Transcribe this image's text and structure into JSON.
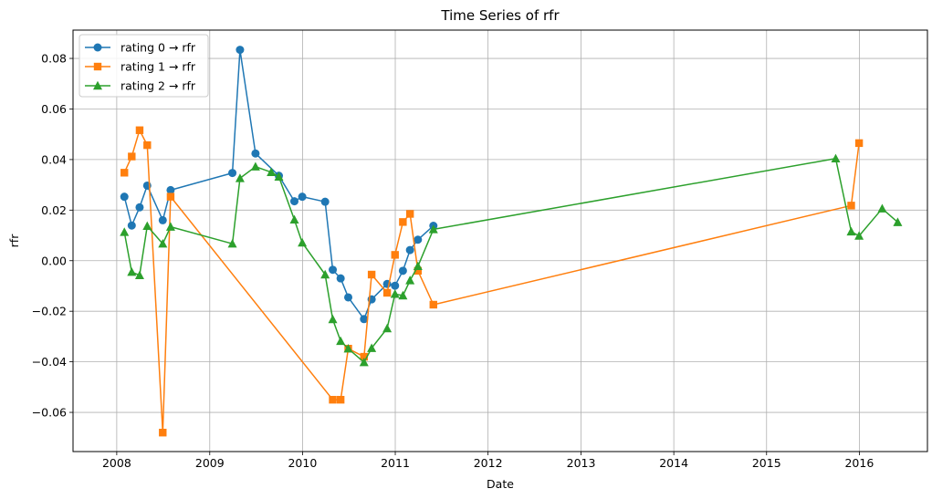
{
  "chart_data": {
    "type": "line",
    "title": "Time Series of rfr",
    "xlabel": "Date",
    "ylabel": "rfr",
    "xlim": [
      "2007-07-13",
      "2016-09-25"
    ],
    "ylim": [
      -0.0755,
      0.0912
    ],
    "grid": true,
    "legend_position": "top-left",
    "x_ticks": [
      "2008",
      "2009",
      "2010",
      "2011",
      "2012",
      "2013",
      "2014",
      "2015",
      "2016"
    ],
    "y_ticks": [
      "−0.06",
      "−0.04",
      "−0.02",
      "0.00",
      "0.02",
      "0.04",
      "0.06",
      "0.08"
    ],
    "y_tick_values": [
      -0.06,
      -0.04,
      -0.02,
      0.0,
      0.02,
      0.04,
      0.06,
      0.08
    ],
    "series": [
      {
        "name": "rating 0 → rfr",
        "color": "#1f77b4",
        "marker": "circle",
        "points": [
          [
            "2008-01-31",
            0.0253
          ],
          [
            "2008-02-29",
            0.0139
          ],
          [
            "2008-03-31",
            0.0211
          ],
          [
            "2008-04-30",
            0.0297
          ],
          [
            "2008-06-30",
            0.016
          ],
          [
            "2008-07-31",
            0.0279
          ],
          [
            "2009-03-31",
            0.0347
          ],
          [
            "2009-04-30",
            0.0834
          ],
          [
            "2009-06-30",
            0.0424
          ],
          [
            "2009-09-30",
            0.0336
          ],
          [
            "2009-11-30",
            0.0235
          ],
          [
            "2009-12-31",
            0.0253
          ],
          [
            "2010-03-31",
            0.0233
          ],
          [
            "2010-04-30",
            -0.0036
          ],
          [
            "2010-05-31",
            -0.007
          ],
          [
            "2010-06-30",
            -0.0145
          ],
          [
            "2010-08-31",
            -0.0231
          ],
          [
            "2010-09-30",
            -0.0153
          ],
          [
            "2010-11-30",
            -0.0092
          ],
          [
            "2010-12-31",
            -0.0099
          ],
          [
            "2011-01-31",
            -0.004
          ],
          [
            "2011-02-28",
            0.0042
          ],
          [
            "2011-03-31",
            0.0083
          ],
          [
            "2011-05-31",
            0.0138
          ]
        ]
      },
      {
        "name": "rating 1 → rfr",
        "color": "#ff7f0e",
        "marker": "square",
        "points": [
          [
            "2008-01-31",
            0.0348
          ],
          [
            "2008-02-29",
            0.0412
          ],
          [
            "2008-03-31",
            0.0516
          ],
          [
            "2008-04-30",
            0.0457
          ],
          [
            "2008-06-30",
            -0.068
          ],
          [
            "2008-07-31",
            0.0253
          ],
          [
            "2010-04-30",
            -0.055
          ],
          [
            "2010-05-31",
            -0.055
          ],
          [
            "2010-06-30",
            -0.0348
          ],
          [
            "2010-08-31",
            -0.038
          ],
          [
            "2010-09-30",
            -0.0055
          ],
          [
            "2010-11-30",
            -0.0127
          ],
          [
            "2010-12-31",
            0.0023
          ],
          [
            "2011-01-31",
            0.0153
          ],
          [
            "2011-02-28",
            0.0185
          ],
          [
            "2011-03-31",
            -0.004
          ],
          [
            "2011-05-31",
            -0.0174
          ],
          [
            "2015-11-30",
            0.0218
          ],
          [
            "2015-12-31",
            0.0465
          ]
        ]
      },
      {
        "name": "rating 2 → rfr",
        "color": "#2ca02c",
        "marker": "triangle",
        "points": [
          [
            "2008-01-31",
            0.0113
          ],
          [
            "2008-02-29",
            -0.0045
          ],
          [
            "2008-03-31",
            -0.0058
          ],
          [
            "2008-04-30",
            0.0137
          ],
          [
            "2008-06-30",
            0.0067
          ],
          [
            "2008-07-31",
            0.0134
          ],
          [
            "2009-03-31",
            0.0067
          ],
          [
            "2009-04-30",
            0.0326
          ],
          [
            "2009-06-30",
            0.0372
          ],
          [
            "2009-08-31",
            0.035
          ],
          [
            "2009-09-30",
            0.0332
          ],
          [
            "2009-11-30",
            0.0162
          ],
          [
            "2009-12-31",
            0.0071
          ],
          [
            "2010-03-31",
            -0.0055
          ],
          [
            "2010-04-30",
            -0.0232
          ],
          [
            "2010-05-31",
            -0.0318
          ],
          [
            "2010-06-30",
            -0.0348
          ],
          [
            "2010-08-31",
            -0.0402
          ],
          [
            "2010-09-30",
            -0.0346
          ],
          [
            "2010-11-30",
            -0.0268
          ],
          [
            "2010-12-31",
            -0.0132
          ],
          [
            "2011-01-31",
            -0.0138
          ],
          [
            "2011-02-28",
            -0.0078
          ],
          [
            "2011-03-31",
            -0.0022
          ],
          [
            "2011-05-31",
            0.0124
          ],
          [
            "2015-09-30",
            0.0404
          ],
          [
            "2015-11-30",
            0.0115
          ],
          [
            "2015-12-31",
            0.0098
          ],
          [
            "2016-03-31",
            0.0206
          ],
          [
            "2016-05-31",
            0.0152
          ]
        ]
      }
    ]
  }
}
